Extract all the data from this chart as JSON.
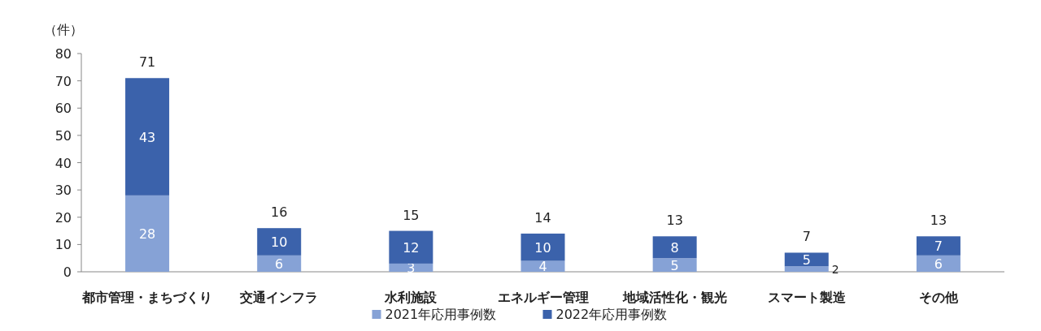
{
  "chart_data": {
    "type": "bar",
    "ylabel": "（件）",
    "categories": [
      "都市管理・まちづくり",
      "交通インフラ",
      "水利施設",
      "エネルギー管理",
      "地域活性化・観光",
      "スマート製造",
      "その他"
    ],
    "series": [
      {
        "name": "2021年応用事例数",
        "color": "#86a2d6",
        "values": [
          28,
          6,
          3,
          4,
          5,
          2,
          6
        ]
      },
      {
        "name": "2022年応用事例数",
        "color": "#3b62ab",
        "values": [
          43,
          10,
          12,
          10,
          8,
          5,
          7
        ]
      }
    ],
    "stacked": true,
    "ylim": [
      0,
      80
    ],
    "yticks": [
      0,
      10,
      20,
      30,
      40,
      50,
      60,
      70,
      80
    ],
    "data_labels": true,
    "totals": [
      "71",
      "16",
      "15",
      "14",
      "13",
      "7",
      "13"
    ],
    "legend": "bottom"
  }
}
